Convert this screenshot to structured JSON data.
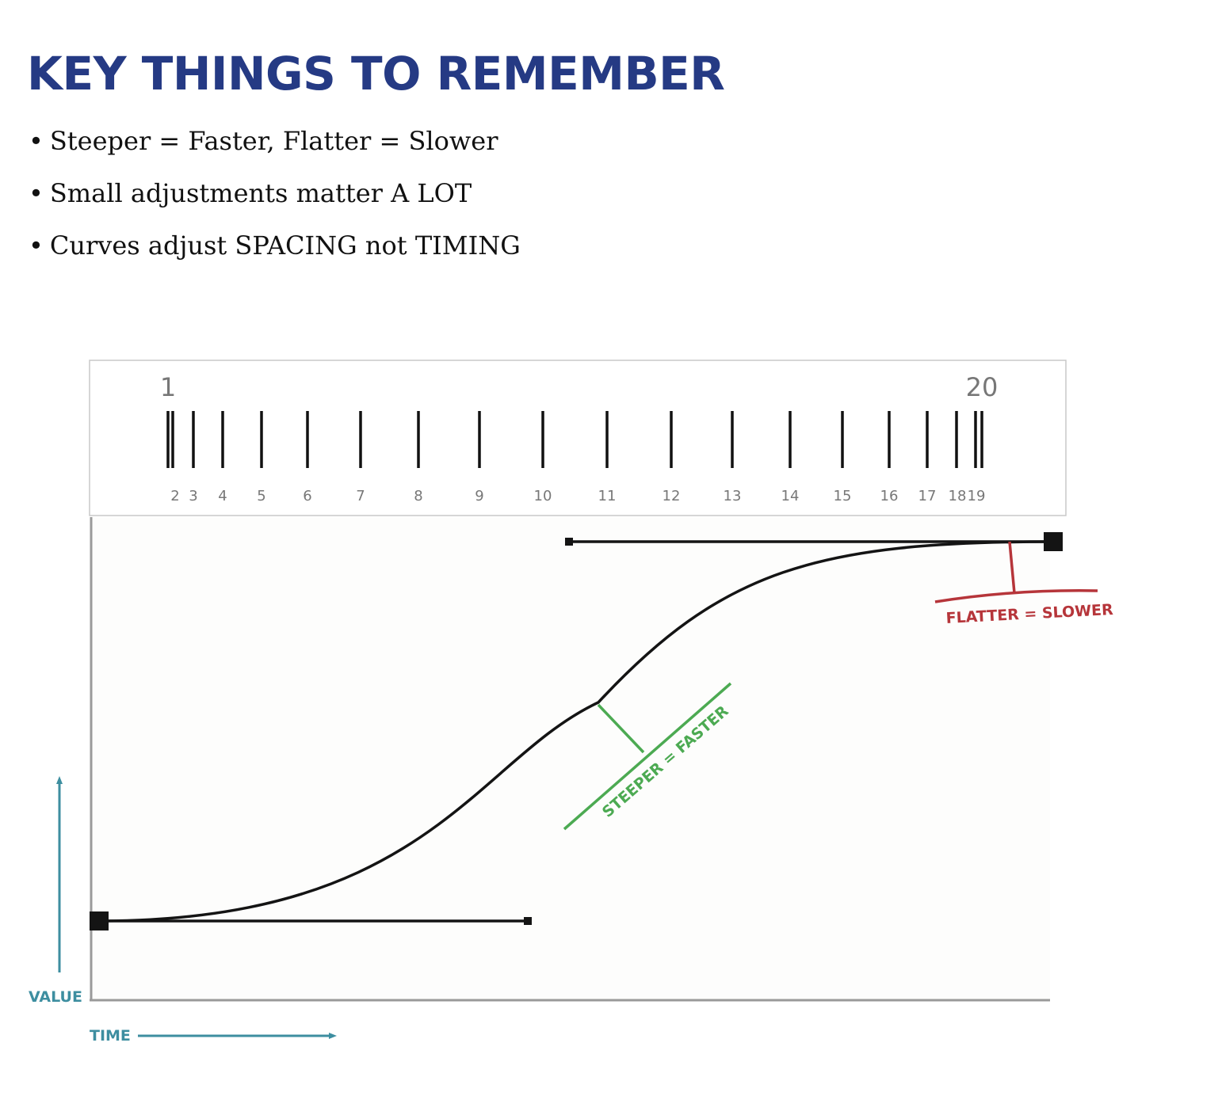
{
  "title": "KEY THINGS TO REMEMBER",
  "bullets": [
    "Steeper = Faster, Flatter = Slower",
    "Small adjustments matter A LOT",
    "Curves adjust SPACING not TIMING"
  ],
  "bullet_glyph": "•",
  "frame_strip": {
    "start_label": "1",
    "end_label": "20",
    "frame_numbers": [
      "2",
      "3",
      "4",
      "5",
      "6",
      "7",
      "8",
      "9",
      "10",
      "11",
      "12",
      "13",
      "14",
      "15",
      "16",
      "17",
      "18",
      "19"
    ]
  },
  "graph": {
    "axis_value_label": "VALUE",
    "axis_time_label": "TIME",
    "steeper_label": "STEEPER = FASTER",
    "flatter_label": "FLATTER = SLOWER"
  },
  "colors": {
    "title": "#253a84",
    "axis_arrows": "#3d8ea0",
    "steeper": "#4caa52",
    "flatter": "#b6353a",
    "curve": "#141414"
  }
}
